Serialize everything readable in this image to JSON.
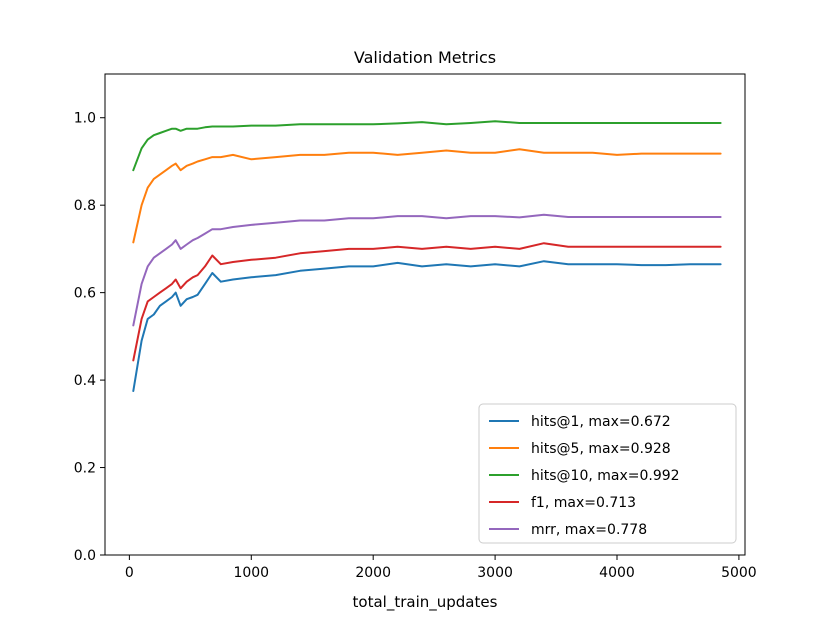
{
  "chart_data": {
    "type": "line",
    "title": "Validation Metrics",
    "xlabel": "total_train_updates",
    "ylabel": "",
    "xlim": [
      -200,
      5050
    ],
    "ylim": [
      0.0,
      1.1
    ],
    "xticks": [
      0,
      1000,
      2000,
      3000,
      4000,
      5000
    ],
    "xtick_labels": [
      "0",
      "1000",
      "2000",
      "3000",
      "4000",
      "5000"
    ],
    "yticks": [
      0.0,
      0.2,
      0.4,
      0.6,
      0.8,
      1.0
    ],
    "ytick_labels": [
      "0.0",
      "0.2",
      "0.4",
      "0.6",
      "0.8",
      "1.0"
    ],
    "grid": false,
    "legend_position": "lower-right",
    "x": [
      32,
      100,
      150,
      200,
      250,
      300,
      350,
      380,
      420,
      470,
      520,
      560,
      620,
      680,
      750,
      850,
      1000,
      1200,
      1400,
      1600,
      1800,
      2000,
      2200,
      2400,
      2600,
      2800,
      3000,
      3200,
      3400,
      3600,
      3800,
      4000,
      4200,
      4400,
      4600,
      4850
    ],
    "series": [
      {
        "name": "hits@1",
        "legend_label": "hits@1, max=0.672",
        "color": "#1f77b4",
        "values": [
          0.375,
          0.49,
          0.54,
          0.55,
          0.57,
          0.58,
          0.59,
          0.6,
          0.57,
          0.585,
          0.59,
          0.595,
          0.62,
          0.645,
          0.625,
          0.63,
          0.635,
          0.64,
          0.65,
          0.655,
          0.66,
          0.66,
          0.668,
          0.66,
          0.665,
          0.66,
          0.665,
          0.66,
          0.672,
          0.665,
          0.665,
          0.665,
          0.663,
          0.663,
          0.665,
          0.665
        ]
      },
      {
        "name": "hits@5",
        "legend_label": "hits@5, max=0.928",
        "color": "#ff7f0e",
        "values": [
          0.715,
          0.8,
          0.84,
          0.86,
          0.87,
          0.88,
          0.89,
          0.895,
          0.88,
          0.89,
          0.895,
          0.9,
          0.905,
          0.91,
          0.91,
          0.915,
          0.905,
          0.91,
          0.915,
          0.915,
          0.92,
          0.92,
          0.915,
          0.92,
          0.925,
          0.92,
          0.92,
          0.928,
          0.92,
          0.92,
          0.92,
          0.915,
          0.918,
          0.918,
          0.918,
          0.918
        ]
      },
      {
        "name": "hits@10",
        "legend_label": "hits@10, max=0.992",
        "color": "#2ca02c",
        "values": [
          0.88,
          0.93,
          0.95,
          0.96,
          0.965,
          0.97,
          0.975,
          0.975,
          0.97,
          0.975,
          0.975,
          0.975,
          0.978,
          0.98,
          0.98,
          0.98,
          0.982,
          0.982,
          0.985,
          0.985,
          0.985,
          0.985,
          0.987,
          0.99,
          0.985,
          0.988,
          0.992,
          0.988,
          0.988,
          0.988,
          0.988,
          0.988,
          0.988,
          0.988,
          0.988,
          0.988
        ]
      },
      {
        "name": "f1",
        "legend_label": "f1, max=0.713",
        "color": "#d62728",
        "values": [
          0.445,
          0.54,
          0.58,
          0.59,
          0.6,
          0.61,
          0.62,
          0.63,
          0.61,
          0.625,
          0.635,
          0.64,
          0.66,
          0.685,
          0.665,
          0.67,
          0.675,
          0.68,
          0.69,
          0.695,
          0.7,
          0.7,
          0.705,
          0.7,
          0.705,
          0.7,
          0.705,
          0.7,
          0.713,
          0.705,
          0.705,
          0.705,
          0.705,
          0.705,
          0.705,
          0.705
        ]
      },
      {
        "name": "mrr",
        "legend_label": "mrr, max=0.778",
        "color": "#9467bd",
        "values": [
          0.525,
          0.62,
          0.66,
          0.68,
          0.69,
          0.7,
          0.71,
          0.72,
          0.7,
          0.71,
          0.72,
          0.725,
          0.735,
          0.745,
          0.745,
          0.75,
          0.755,
          0.76,
          0.765,
          0.765,
          0.77,
          0.77,
          0.775,
          0.775,
          0.77,
          0.775,
          0.775,
          0.772,
          0.778,
          0.773,
          0.773,
          0.773,
          0.773,
          0.773,
          0.773,
          0.773
        ]
      }
    ]
  }
}
